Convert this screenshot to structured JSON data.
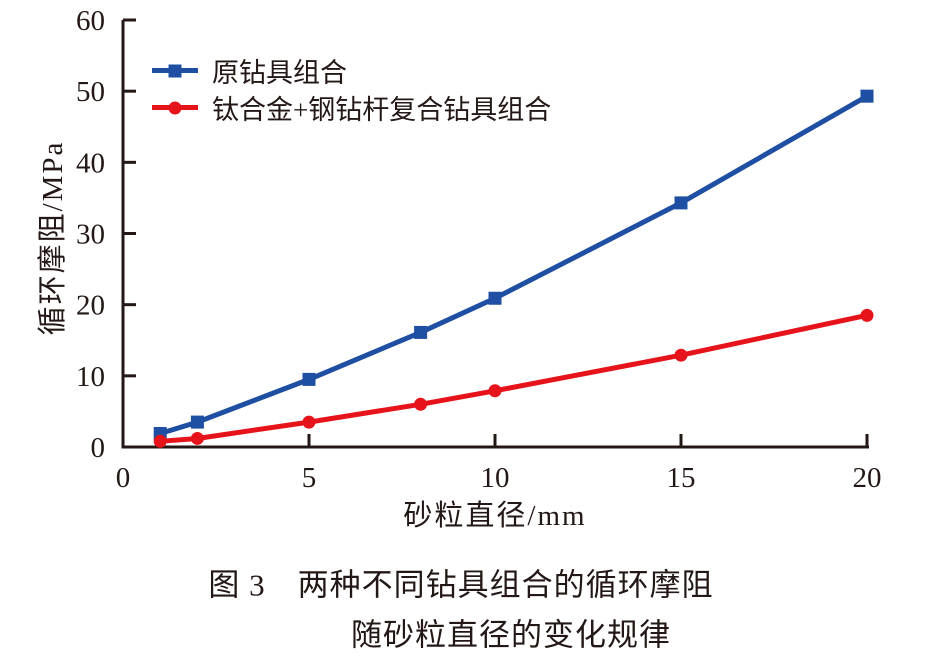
{
  "figure": {
    "caption_line1": "图 3　两种不同钻具组合的循环摩阻",
    "caption_line2": "随砂粒直径的变化规律"
  },
  "colors": {
    "axis": "#231815",
    "background": "#FFFFFF",
    "series_original_blue": "#1E4FA3",
    "series_composite_red": "#E6141A"
  },
  "chart_data": {
    "type": "line",
    "title": "",
    "xlabel": "砂粒直径/mm",
    "ylabel": "循环摩阻/MPa",
    "xlim": [
      0,
      20
    ],
    "ylim": [
      0,
      60
    ],
    "x_ticks": [
      0,
      5,
      10,
      15,
      20
    ],
    "y_ticks": [
      0,
      10,
      20,
      30,
      40,
      50,
      60
    ],
    "grid": false,
    "legend_position": "inside-top-left",
    "x": [
      1,
      2,
      5,
      8,
      10,
      15,
      20
    ],
    "series": [
      {
        "name": "原钻具组合",
        "marker": "square",
        "color": "#1E4FA3",
        "values": [
          1.9,
          3.5,
          9.5,
          16.1,
          20.9,
          34.3,
          49.3
        ]
      },
      {
        "name": "钛合金+钢钻杆复合钻具组合",
        "marker": "circle",
        "color": "#E6141A",
        "values": [
          0.8,
          1.2,
          3.5,
          6.0,
          7.9,
          12.9,
          18.5
        ]
      }
    ]
  }
}
